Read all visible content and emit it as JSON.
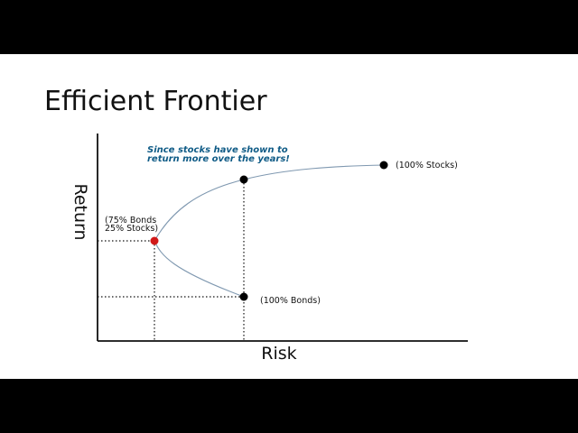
{
  "slide": {
    "title": "Efficient Frontier"
  },
  "chart_data": {
    "type": "line",
    "xlabel": "Risk",
    "ylabel": "Return",
    "annotation": [
      "Since stocks have shown to",
      "return more over the years!"
    ],
    "points": [
      {
        "label_lines": [
          "(100% Stocks)"
        ],
        "color": "#000000"
      },
      {
        "label_lines": [
          "(75% Bonds",
          "25% Stocks)"
        ],
        "color": "#d11a1a"
      },
      {
        "label_lines": [
          "(100% Bonds)"
        ],
        "color": "#000000"
      },
      {
        "label_lines": [],
        "color": "#000000"
      }
    ],
    "colors": {
      "curve": "#7f98b0",
      "axes": "#111111",
      "guides": "#111111"
    }
  }
}
